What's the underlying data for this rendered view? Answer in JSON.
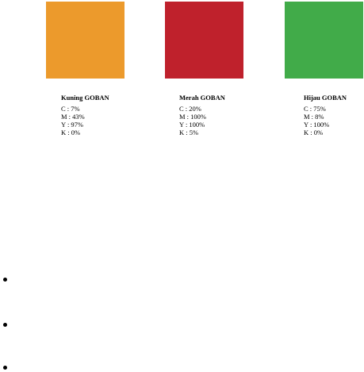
{
  "colors": [
    {
      "name": "Kuning GOBAN",
      "hex": "#EC9A2C",
      "c": "C  : 7%",
      "m": "M : 43%",
      "y": "Y  : 97%",
      "k": "K  : 0%"
    },
    {
      "name": "Merah GOBAN",
      "hex": "#BF212C",
      "c": "C  : 20%",
      "m": "M : 100%",
      "y": "Y  : 100%",
      "k": "K  : 5%"
    },
    {
      "name": "Hijau GOBAN",
      "hex": "#41AB49",
      "c": "C  : 75%",
      "m": "M : 8%",
      "y": "Y  : 100%",
      "k": "K  : 0%"
    }
  ],
  "list": {
    "items": [
      "",
      "",
      ""
    ]
  }
}
